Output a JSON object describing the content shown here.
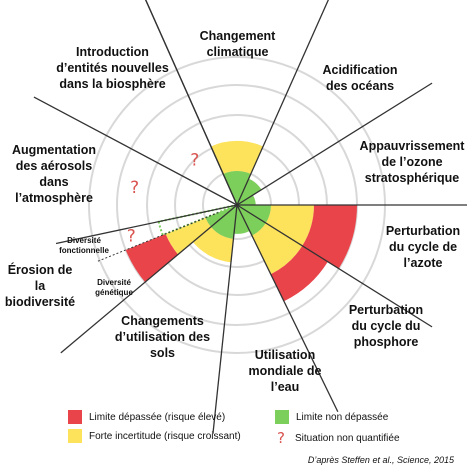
{
  "sectors": [
    {
      "id": "climate",
      "label": "Changement climatique",
      "status": "yellow",
      "value": 1.7,
      "green": 1.0
    },
    {
      "id": "ocean",
      "label": "Acidification des océans",
      "status": "green",
      "value": 0.85
    },
    {
      "id": "ozone",
      "label": "Appauvrissement de l’ozone stratosphérique",
      "status": "green",
      "value": 0.55
    },
    {
      "id": "nitrogen",
      "label": "Perturbation du cycle de l’azote",
      "status": "red",
      "value": 3.0,
      "green": 1.0
    },
    {
      "id": "phosphorus",
      "label": "Perturbation du cycle du phosphore",
      "status": "red",
      "value": 2.7,
      "green": 1.0
    },
    {
      "id": "water",
      "label": "Utilisation mondiale de l’eau",
      "status": "green",
      "value": 0.85
    },
    {
      "id": "land",
      "label": "Changements d’utilisation des sols",
      "status": "yellow",
      "value": 1.55,
      "green": 1.0
    },
    {
      "id": "biodiv_gen",
      "label": "Diversité génétique",
      "status": "red",
      "value": 3.0,
      "green": 1.0
    },
    {
      "id": "biodiv_func",
      "label": "Diversité fonctionnelle",
      "status": "unknown"
    },
    {
      "id": "aerosols",
      "label": "Augmentation des aérosols dans l’atmosphère",
      "status": "unknown"
    },
    {
      "id": "novel",
      "label": "Introduction d’entités nouvelles dans la biosphère",
      "status": "unknown"
    }
  ],
  "labels": {
    "climate": [
      "Changement",
      "climatique"
    ],
    "ocean": [
      "Acidification",
      "des océans"
    ],
    "ozone": [
      "Appauvrissement",
      "de l’ozone",
      "stratosphérique"
    ],
    "nitrogen": [
      "Perturbation",
      "du cycle de",
      "l’azote"
    ],
    "phosphorus": [
      "Perturbation",
      "du cycle du",
      "phosphore"
    ],
    "water": [
      "Utilisation",
      "mondiale de",
      "l’eau"
    ],
    "land": [
      "Changements",
      "d’utilisation des",
      "sols"
    ],
    "biodiv": [
      "Érosion de",
      "la biodiversité"
    ],
    "biodiv_func": [
      "Diversité",
      "fonctionnelle"
    ],
    "biodiv_gen": [
      "Diversité",
      "génétique"
    ],
    "aerosols": [
      "Augmentation",
      "des aérosols",
      "dans",
      "l’atmosphère"
    ],
    "novel": [
      "Introduction",
      "d’entités nouvelles",
      "dans la biosphère"
    ]
  },
  "legend": {
    "red": "Limite dépassée (risque élevé)",
    "yellow": "Forte incertitude (risque croissant)",
    "green": "Limite non dépassée",
    "unknown": "Situation non quantifiée",
    "unknown_symbol": "?"
  },
  "credit": "D’après Steffen et al., Science, 2015",
  "colors": {
    "red": "#e8444a",
    "yellow": "#fde25b",
    "green": "#7ccf5a",
    "grid": "#d8d8d8",
    "axis": "#333333",
    "question": "#d9534f"
  }
}
